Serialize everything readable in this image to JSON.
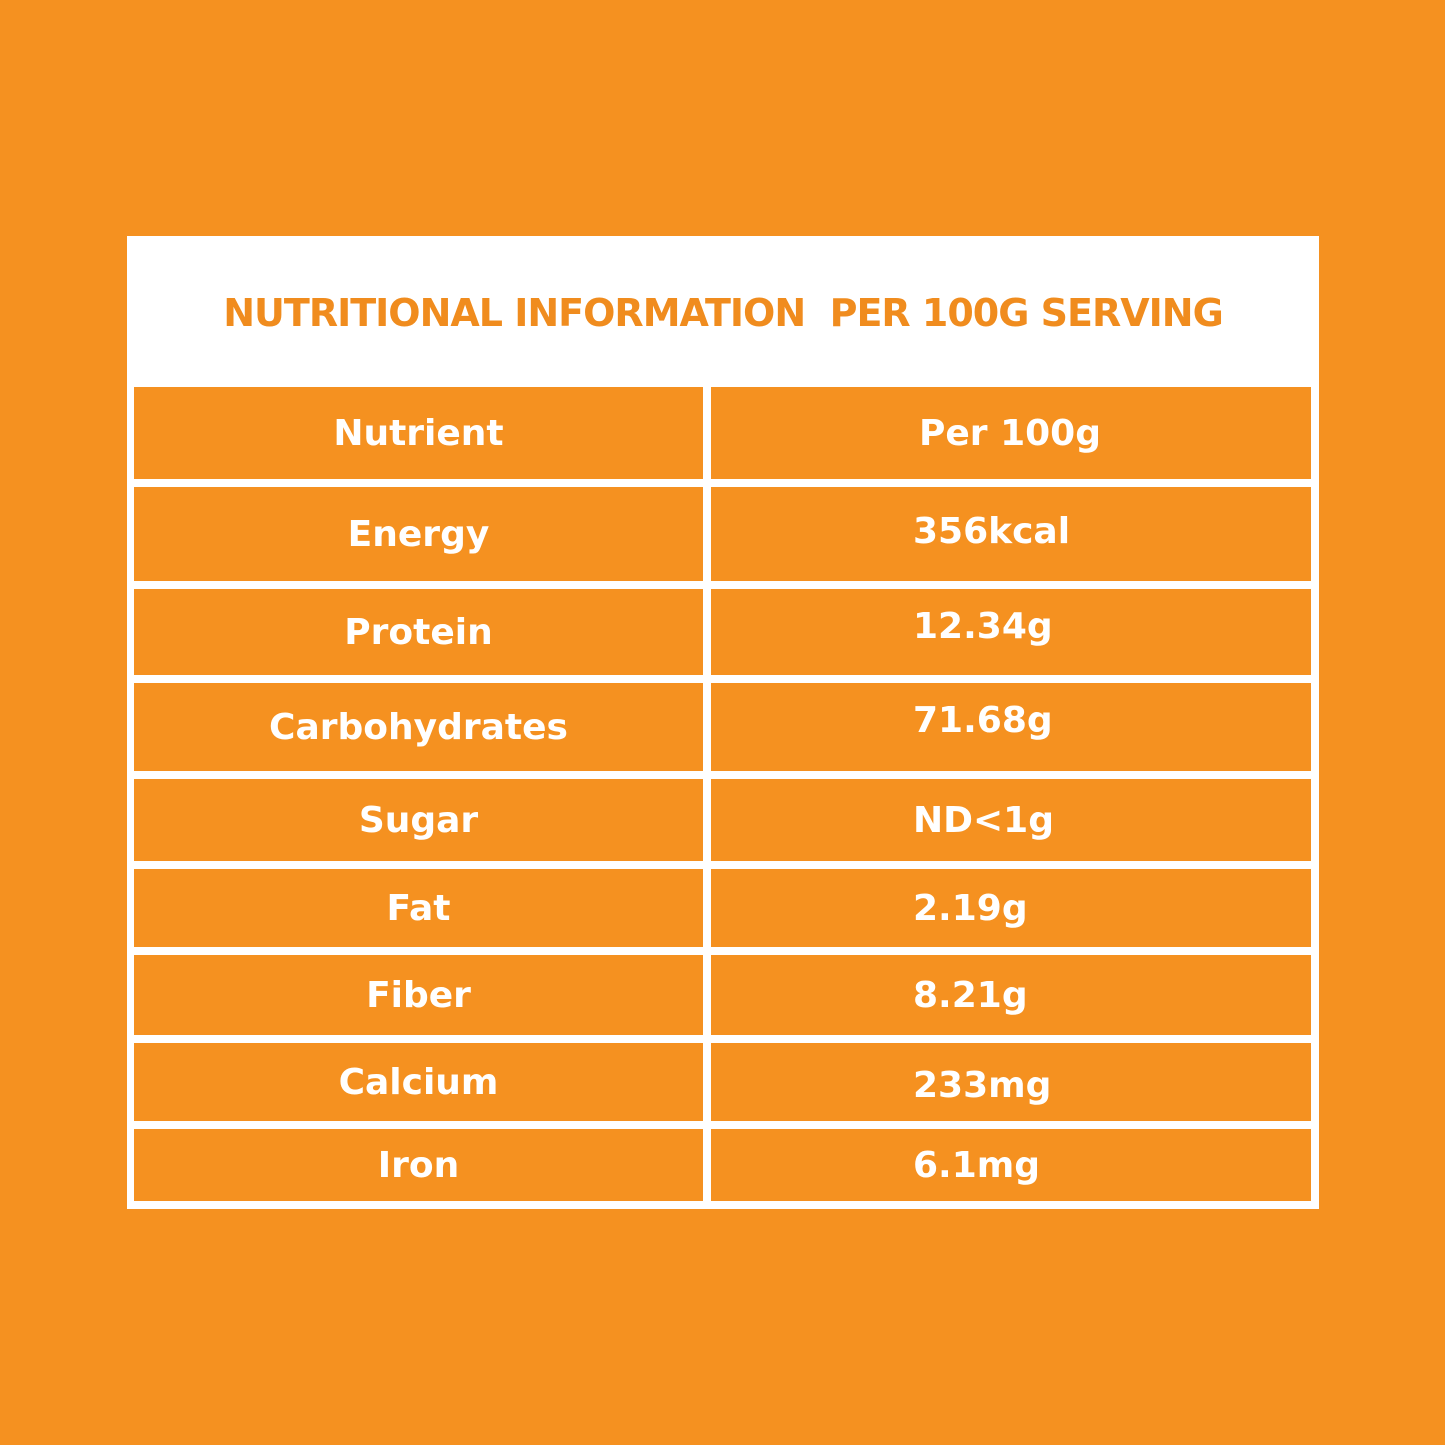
{
  "title": "NUTRITIONAL INFORMATION  PER 100G SERVING",
  "table": {
    "headers": [
      "Nutrient",
      "Per 100g"
    ],
    "rows": [
      [
        "Energy",
        "356kcal"
      ],
      [
        "Protein",
        "12.34g"
      ],
      [
        "Carbohydrates",
        "71.68g"
      ],
      [
        "Sugar",
        "ND<1g"
      ],
      [
        "Fat",
        "2.19g"
      ],
      [
        "Fiber",
        "8.21g"
      ],
      [
        "Calcium",
        "233mg"
      ],
      [
        "Iron",
        "6.1mg"
      ]
    ]
  },
  "colors": {
    "background": "#F59120",
    "card": "#FFFFFF",
    "title_text": "#F08C1E",
    "cell_text": "#FFFFFF"
  }
}
